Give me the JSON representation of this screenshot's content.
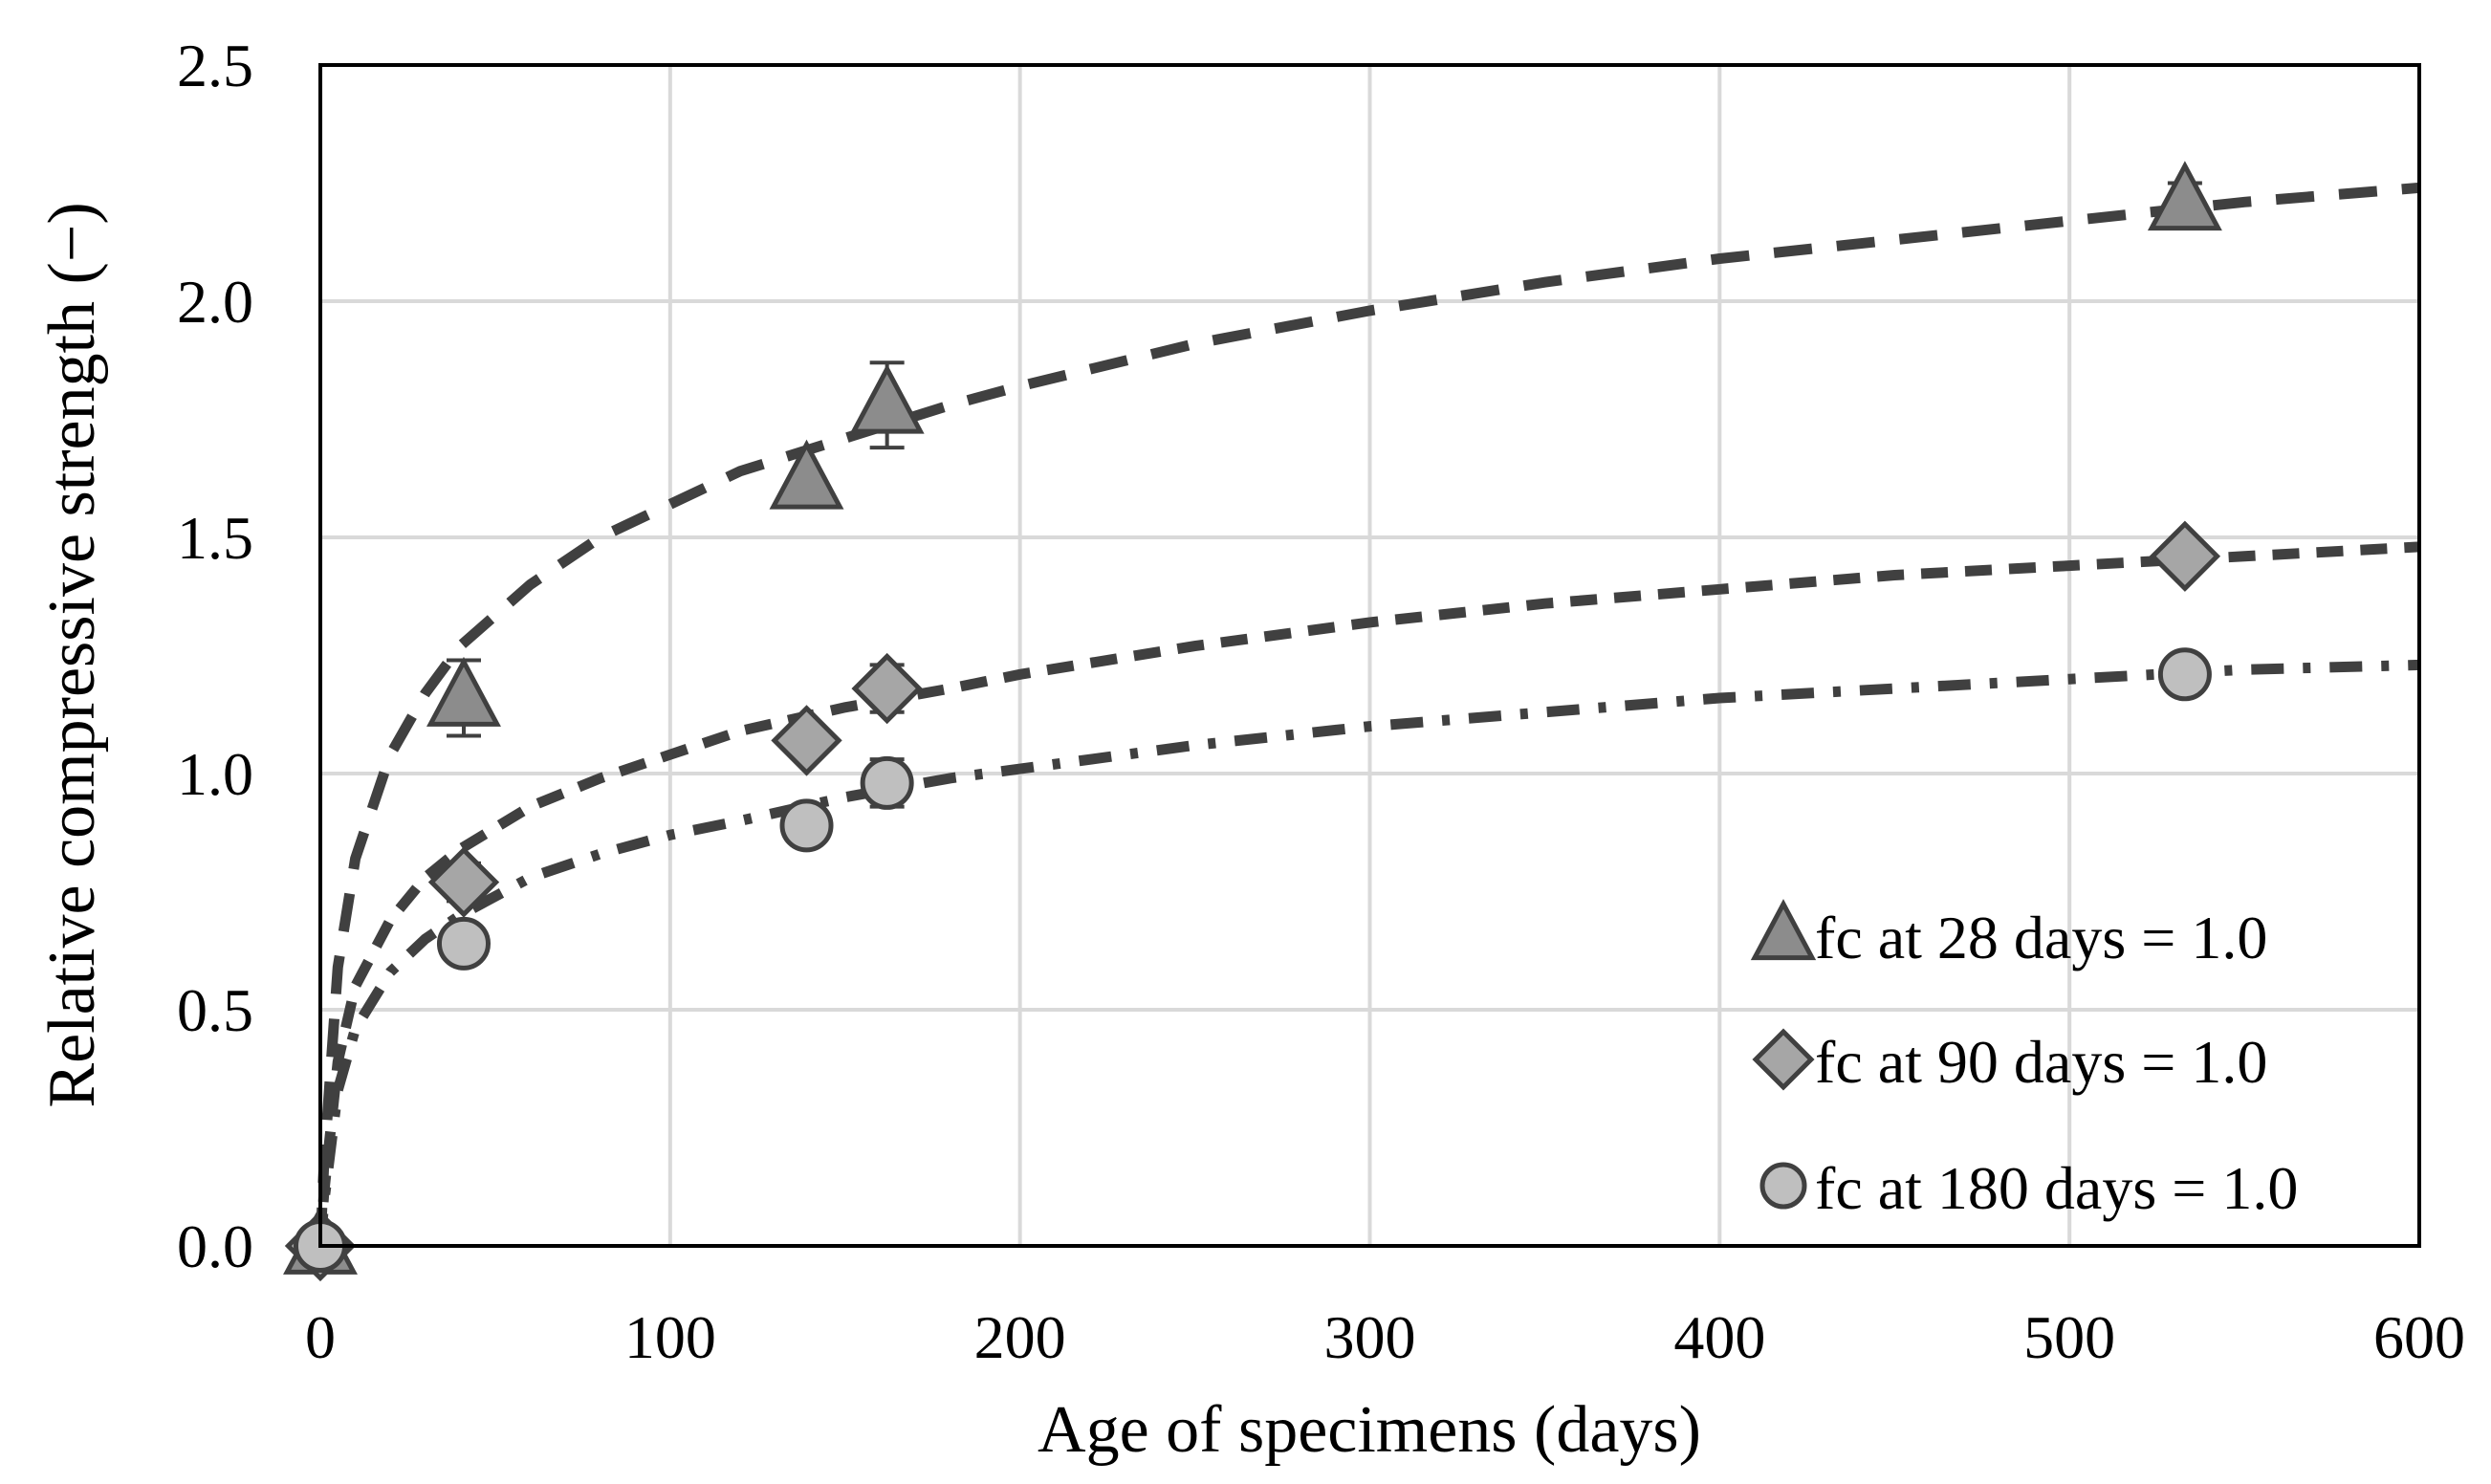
{
  "chart_data": {
    "type": "scatter",
    "title": "",
    "xlabel": "Age of specimens (days)",
    "ylabel": "Relative compressive strength (−)",
    "xlim": [
      0,
      600
    ],
    "ylim": [
      0,
      2.5
    ],
    "x_ticks": [
      "0",
      "100",
      "200",
      "300",
      "400",
      "500",
      "600"
    ],
    "y_ticks": [
      "0.0",
      "0.5",
      "1.0",
      "1.5",
      "2.0",
      "2.5"
    ],
    "grid": true,
    "legend_position": "bottom-right",
    "series": [
      {
        "name": "fc at 28 days = 1.0",
        "marker": "triangle",
        "trendline": "dashed",
        "color": "#8c8c8c",
        "x": [
          0,
          41,
          139,
          162,
          533
        ],
        "y": [
          0.0,
          1.16,
          1.62,
          1.78,
          2.21
        ],
        "error": [
          0,
          0.08,
          0,
          0.09,
          0.04
        ],
        "trend_x": [
          1,
          5,
          10,
          20,
          30,
          40,
          60,
          80,
          100,
          120,
          150,
          180,
          200,
          250,
          300,
          350,
          400,
          450,
          500,
          550,
          600
        ],
        "trend_y": [
          0.17,
          0.59,
          0.82,
          1.04,
          1.17,
          1.27,
          1.4,
          1.5,
          1.57,
          1.64,
          1.71,
          1.78,
          1.82,
          1.91,
          1.98,
          2.04,
          2.09,
          2.13,
          2.17,
          2.21,
          2.24
        ]
      },
      {
        "name": "fc at 90 days = 1.0",
        "marker": "diamond",
        "trendline": "short-dashed",
        "color": "#a6a6a6",
        "x": [
          0,
          41,
          139,
          162,
          533
        ],
        "y": [
          0.0,
          0.77,
          1.07,
          1.18,
          1.46
        ],
        "error": [
          0,
          0.04,
          0,
          0.05,
          0.02
        ],
        "trend_x": [
          1,
          5,
          10,
          20,
          30,
          40,
          60,
          80,
          100,
          120,
          150,
          180,
          200,
          250,
          300,
          350,
          400,
          450,
          500,
          550,
          600
        ],
        "trend_y": [
          0.11,
          0.39,
          0.55,
          0.69,
          0.78,
          0.84,
          0.93,
          0.99,
          1.04,
          1.09,
          1.14,
          1.18,
          1.21,
          1.27,
          1.32,
          1.36,
          1.39,
          1.42,
          1.44,
          1.46,
          1.48
        ]
      },
      {
        "name": "fc at 180 days = 1.0",
        "marker": "circle",
        "trendline": "dash-dot",
        "color": "#bfbfbf",
        "x": [
          0,
          41,
          139,
          162,
          533
        ],
        "y": [
          0.0,
          0.64,
          0.89,
          0.98,
          1.21
        ],
        "error": [
          0,
          0.03,
          0,
          0.05,
          0.02
        ],
        "trend_x": [
          1,
          5,
          10,
          20,
          30,
          40,
          60,
          80,
          100,
          120,
          150,
          180,
          200,
          250,
          300,
          350,
          400,
          450,
          500,
          550,
          600
        ],
        "trend_y": [
          0.09,
          0.33,
          0.46,
          0.58,
          0.65,
          0.7,
          0.78,
          0.83,
          0.87,
          0.9,
          0.95,
          0.99,
          1.01,
          1.06,
          1.1,
          1.13,
          1.16,
          1.18,
          1.2,
          1.22,
          1.23
        ]
      }
    ]
  }
}
